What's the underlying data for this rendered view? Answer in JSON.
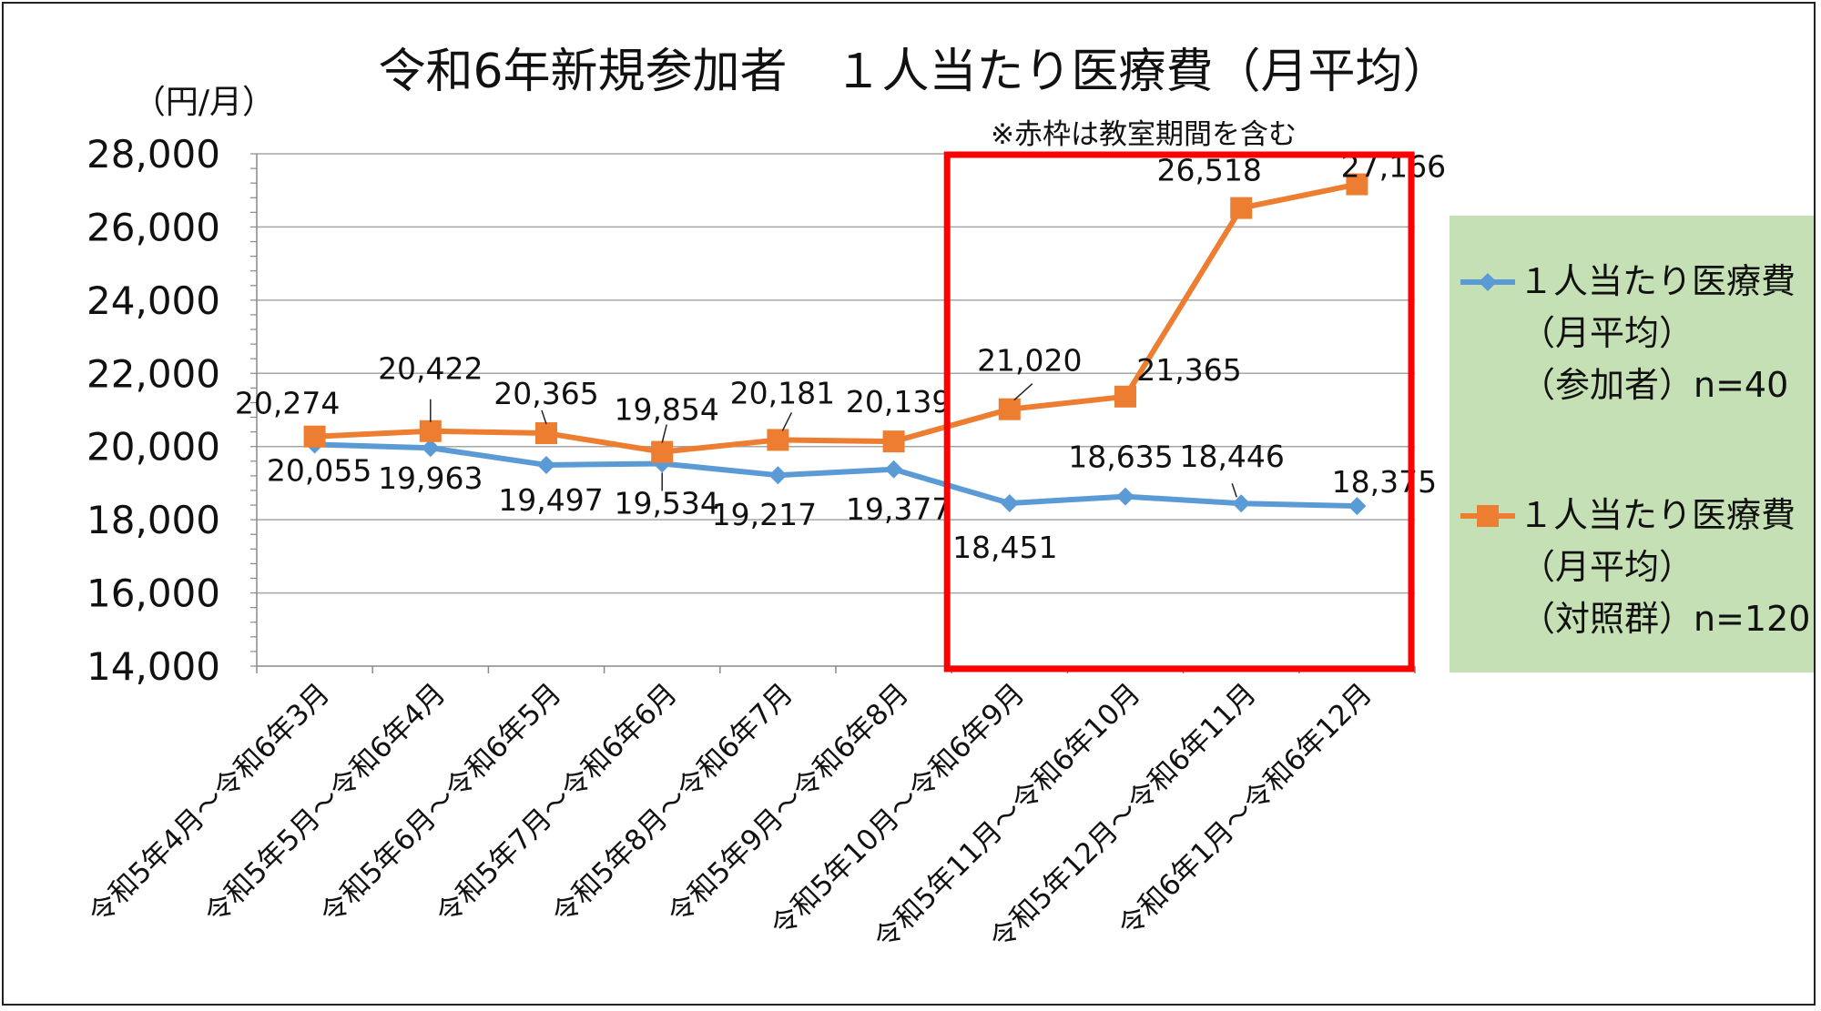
{
  "chart_data": {
    "type": "line",
    "title": "令和6年新規参加者　１人当たり医療費（月平均）",
    "unit_label": "（円/月）",
    "note": "※赤枠は教室期間を含む",
    "ylim": [
      14000,
      28000
    ],
    "ytick_step": 2000,
    "yticks": [
      "14,000",
      "16,000",
      "18,000",
      "20,000",
      "22,000",
      "24,000",
      "26,000",
      "28,000"
    ],
    "categories": [
      "令和5年4月～令和6年3月",
      "令和5年5月～令和6年4月",
      "令和5年6月～令和6年5月",
      "令和5年7月～令和6年6月",
      "令和5年8月～令和6年7月",
      "令和5年9月～令和6年8月",
      "令和5年10月～令和6年9月",
      "令和5年11月～令和6年10月",
      "令和5年12月～令和6年11月",
      "令和6年1月～令和6年12月"
    ],
    "series": [
      {
        "name_lines": [
          "１人当たり医療費",
          "（月平均）",
          "（参加者）n=40"
        ],
        "color": "#5b9bd5",
        "marker": "diamond",
        "values": [
          20055,
          19963,
          19497,
          19534,
          19217,
          19377,
          18451,
          18635,
          18446,
          18375
        ],
        "labels": [
          "20,055",
          "19,963",
          "19,497",
          "19,534",
          "19,217",
          "19,377",
          "18,451",
          "18,635",
          "18,446",
          "18,375"
        ]
      },
      {
        "name_lines": [
          "１人当たり医療費",
          "（月平均）",
          "（対照群）n=120"
        ],
        "color": "#ed7d31",
        "marker": "square",
        "values": [
          20274,
          20422,
          20365,
          19854,
          20181,
          20139,
          21020,
          21365,
          26518,
          27166
        ],
        "labels": [
          "20,274",
          "20,422",
          "20,365",
          "19,854",
          "20,181",
          "20,139",
          "21,020",
          "21,365",
          "26,518",
          "27,166"
        ]
      }
    ],
    "highlight": {
      "from_index": 6,
      "to_index": 9,
      "color": "#ff0000"
    },
    "legend": {
      "placement": "right",
      "background": "#c5e0b4"
    },
    "grid": true
  }
}
